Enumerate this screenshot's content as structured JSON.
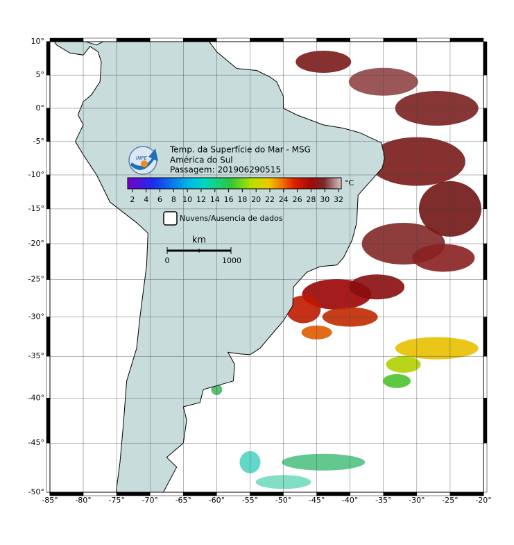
{
  "map": {
    "type": "map",
    "lonlim": [
      -85,
      -20
    ],
    "latlim": [
      -50,
      10
    ],
    "lon_ticks": [
      {
        "value": -85,
        "label": "-85°"
      },
      {
        "value": -80,
        "label": "-80°"
      },
      {
        "value": -75,
        "label": "-75°"
      },
      {
        "value": -70,
        "label": "-70°"
      },
      {
        "value": -65,
        "label": "-65°"
      },
      {
        "value": -60,
        "label": "-60°"
      },
      {
        "value": -55,
        "label": "-55°"
      },
      {
        "value": -50,
        "label": "-50°"
      },
      {
        "value": -45,
        "label": "-45°"
      },
      {
        "value": -40,
        "label": "-40°"
      },
      {
        "value": -35,
        "label": "-35°"
      },
      {
        "value": -30,
        "label": "-30°"
      },
      {
        "value": -25,
        "label": "-25°"
      },
      {
        "value": -20,
        "label": "-20°"
      }
    ],
    "lat_ticks": [
      {
        "value": 10,
        "label": "10°"
      },
      {
        "value": 5,
        "label": "5°"
      },
      {
        "value": 0,
        "label": "0°"
      },
      {
        "value": -5,
        "label": "-5°"
      },
      {
        "value": -10,
        "label": "-10°"
      },
      {
        "value": -15,
        "label": "-15°"
      },
      {
        "value": -20,
        "label": "-20°"
      },
      {
        "value": -25,
        "label": "-25°"
      },
      {
        "value": -30,
        "label": "-30°"
      },
      {
        "value": -35,
        "label": "-35°"
      },
      {
        "value": -40,
        "label": "-40°"
      },
      {
        "value": -45,
        "label": "-45°"
      },
      {
        "value": -50,
        "label": "-50°"
      }
    ],
    "logo_text": "INPE",
    "title_lines": [
      "Temp. da Superfície do Mar - MSG",
      "América do Sul",
      "Passagem: 201906290515"
    ],
    "colorbar": {
      "unit": "°C",
      "lim": [
        1.3,
        32.4
      ],
      "ticks": [
        2,
        4,
        6,
        8,
        10,
        12,
        14,
        16,
        18,
        20,
        22,
        24,
        26,
        28,
        30,
        32
      ]
    },
    "legend_label": "Nuvens/Ausencia de dados",
    "scale_bar": {
      "unit": "km",
      "start_label": "0",
      "end_label": "1000"
    }
  }
}
